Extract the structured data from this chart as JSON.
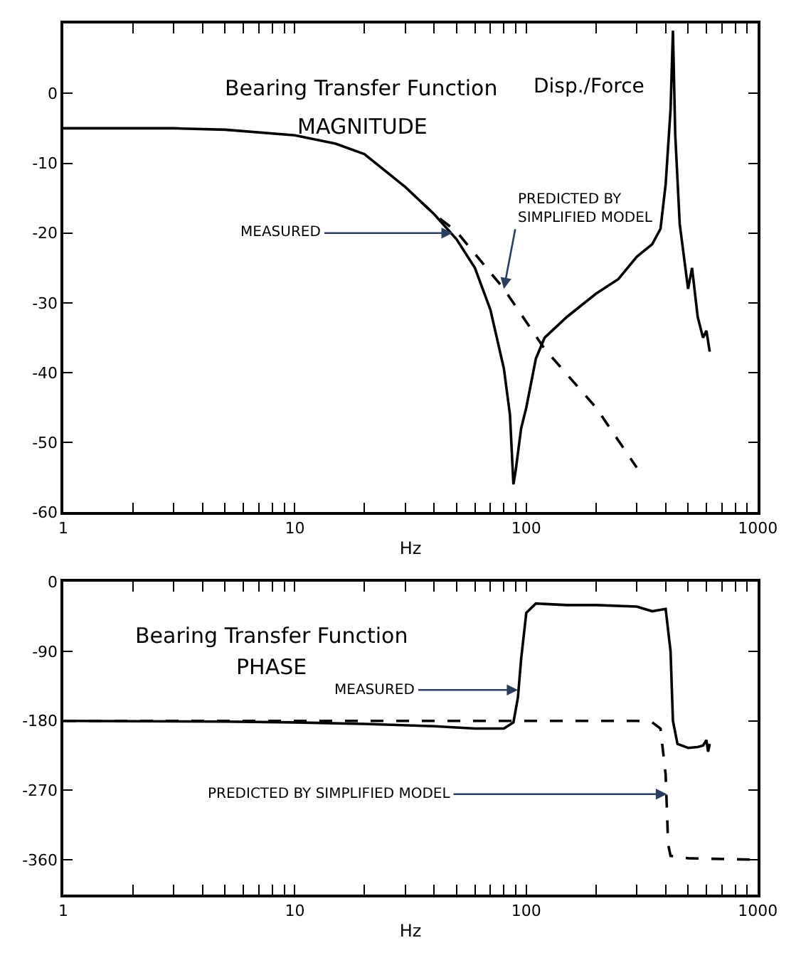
{
  "chart_data": [
    {
      "type": "line",
      "title": "Bearing Transfer Function",
      "subtitle": "MAGNITUDE",
      "xlabel": "Hz",
      "log": "x",
      "marker": "none",
      "annotations": [
        "Disp./Force",
        {
          "text": "MEASURED",
          "x": 48,
          "y": -20
        },
        {
          "text": "PREDICTED BY SIMPLIFIED MODEL",
          "x": 80,
          "y": -28
        }
      ],
      "xlim": [
        1,
        1000
      ],
      "ylim": [
        -60,
        10
      ],
      "xticks": [
        1,
        {
          "value": 2,
          "label": null
        },
        {
          "value": 3,
          "label": null
        },
        {
          "value": 4,
          "label": null
        },
        {
          "value": 5,
          "label": null
        },
        {
          "value": 6,
          "label": null
        },
        {
          "value": 7,
          "label": null
        },
        {
          "value": 8,
          "label": null
        },
        {
          "value": 9,
          "label": null
        },
        10,
        {
          "value": 20,
          "label": null
        },
        {
          "value": 30,
          "label": null
        },
        {
          "value": 40,
          "label": null
        },
        {
          "value": 50,
          "label": null
        },
        {
          "value": 60,
          "label": null
        },
        {
          "value": 70,
          "label": null
        },
        {
          "value": 80,
          "label": null
        },
        {
          "value": 90,
          "label": null
        },
        100,
        {
          "value": 200,
          "label": null
        },
        {
          "value": 300,
          "label": null
        },
        {
          "value": 400,
          "label": null
        },
        {
          "value": 500,
          "label": null
        },
        {
          "value": 600,
          "label": null
        },
        {
          "value": 700,
          "label": null
        },
        {
          "value": 800,
          "label": null
        },
        {
          "value": 900,
          "label": null
        },
        1000
      ],
      "yticks": [
        0,
        -10,
        -20,
        -30,
        -40,
        -50,
        -60
      ],
      "series": [
        {
          "color": "#000000",
          "line_style": "solid",
          "x": [
            1,
            3,
            5,
            10,
            15,
            20,
            30,
            40,
            50,
            60,
            70,
            80,
            85,
            88,
            90,
            95,
            100,
            110,
            120,
            150,
            200,
            250,
            300,
            350,
            380,
            400,
            420,
            430,
            440,
            460,
            500,
            520,
            550,
            580,
            600,
            620
          ],
          "values": [
            -5,
            -5,
            -5.2,
            -6,
            -7.2,
            -8.7,
            -13.4,
            -17.3,
            -20.9,
            -25,
            -31,
            -39.4,
            -46,
            -56,
            -54,
            -48,
            -45,
            -38,
            -35,
            -32,
            -28.7,
            -26.6,
            -23.4,
            -21.6,
            -19.4,
            -13,
            -2.3,
            9,
            -5.9,
            -18.7,
            -28,
            -25,
            -32,
            -35,
            -34,
            -37
          ]
        },
        {
          "color": "#000000",
          "line_style": "dashed",
          "x": [
            35,
            40,
            50,
            80,
            120,
            200,
            300
          ],
          "values": [
            -15.5,
            -17.3,
            -19.8,
            -28,
            -36.6,
            -45,
            -53.6
          ]
        }
      ]
    },
    {
      "type": "line",
      "title": "Bearing Transfer Function",
      "subtitle": "PHASE",
      "xlabel": "Hz",
      "log": "x",
      "marker": "none",
      "annotations": [
        {
          "text": "MEASURED",
          "x": 92,
          "y": -140
        },
        {
          "text": "PREDICTED BY SIMPLIFIED MODEL",
          "x": 405,
          "y": -275
        }
      ],
      "xlim": [
        1,
        1000
      ],
      "ylim": [
        -405,
        0
      ],
      "xticks": [
        1,
        {
          "value": 2,
          "label": null
        },
        {
          "value": 3,
          "label": null
        },
        {
          "value": 4,
          "label": null
        },
        {
          "value": 5,
          "label": null
        },
        {
          "value": 6,
          "label": null
        },
        {
          "value": 7,
          "label": null
        },
        {
          "value": 8,
          "label": null
        },
        {
          "value": 9,
          "label": null
        },
        10,
        {
          "value": 20,
          "label": null
        },
        {
          "value": 30,
          "label": null
        },
        {
          "value": 40,
          "label": null
        },
        {
          "value": 50,
          "label": null
        },
        {
          "value": 60,
          "label": null
        },
        {
          "value": 70,
          "label": null
        },
        {
          "value": 80,
          "label": null
        },
        {
          "value": 90,
          "label": null
        },
        100,
        {
          "value": 200,
          "label": null
        },
        {
          "value": 300,
          "label": null
        },
        {
          "value": 400,
          "label": null
        },
        {
          "value": 500,
          "label": null
        },
        {
          "value": 600,
          "label": null
        },
        {
          "value": 700,
          "label": null
        },
        {
          "value": 800,
          "label": null
        },
        {
          "value": 900,
          "label": null
        },
        1000
      ],
      "yticks": [
        0,
        -90,
        -180,
        -270,
        -360
      ],
      "series": [
        {
          "color": "#000000",
          "line_style": "solid",
          "x": [
            1,
            5,
            10,
            20,
            40,
            60,
            80,
            88,
            92,
            95,
            100,
            110,
            150,
            200,
            300,
            350,
            400,
            420,
            430,
            450,
            500,
            550,
            580,
            600,
            610,
            620
          ],
          "values": [
            -180,
            -181,
            -182,
            -184,
            -187,
            -190,
            -190,
            -182,
            -150,
            -100,
            -40,
            -28,
            -30,
            -30,
            -32,
            -38,
            -35,
            -90,
            -180,
            -210,
            -215,
            -214,
            -212,
            -205,
            -220,
            -210
          ]
        },
        {
          "color": "#000000",
          "line_style": "dashed",
          "x": [
            1,
            10,
            100,
            300,
            350,
            380,
            400,
            410,
            420,
            500,
            1000
          ],
          "values": [
            -180,
            -180,
            -180,
            -180,
            -182,
            -190,
            -250,
            -340,
            -355,
            -358,
            -360
          ]
        }
      ]
    }
  ]
}
